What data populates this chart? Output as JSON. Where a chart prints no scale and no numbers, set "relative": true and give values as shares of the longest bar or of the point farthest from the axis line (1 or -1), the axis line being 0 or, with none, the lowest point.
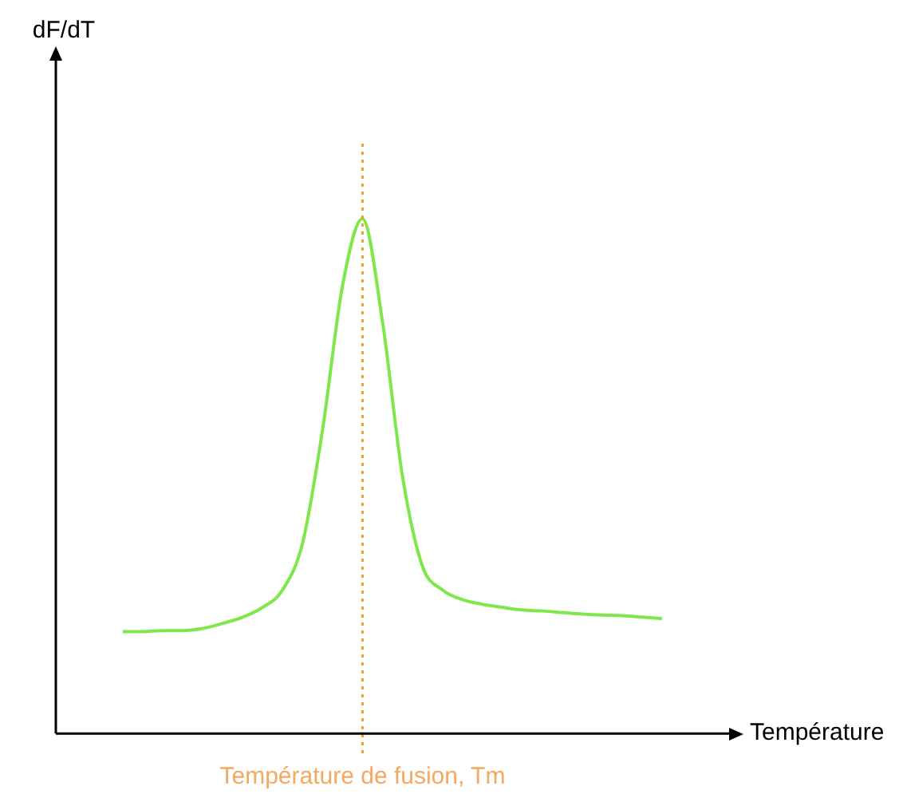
{
  "chart_data": {
    "type": "line",
    "relative": true,
    "xlabel": "Température",
    "categories": [
      null,
      null,
      null,
      null,
      null,
      null,
      null,
      null,
      null,
      null,
      null,
      null,
      null,
      null,
      null,
      null,
      null,
      null,
      null,
      null,
      null,
      null,
      null,
      null,
      null,
      null,
      null,
      null
    ],
    "series": [
      {
        "color": "#7ee84a",
        "values": [
          0.198,
          0.198,
          0.2,
          0.2,
          0.204,
          0.214,
          0.226,
          0.245,
          0.279,
          0.37,
          0.59,
          0.87,
          1.0,
          0.8,
          0.5,
          0.325,
          0.279,
          0.26,
          0.251,
          0.245,
          0.24,
          0.238,
          0.235,
          0.232,
          0.23,
          0.229,
          0.226,
          0.223
        ]
      }
    ],
    "annotations": [
      "dF/dT",
      "Température de fusion, Tm"
    ],
    "legend": false,
    "marker": "none",
    "line_style": "solid"
  }
}
